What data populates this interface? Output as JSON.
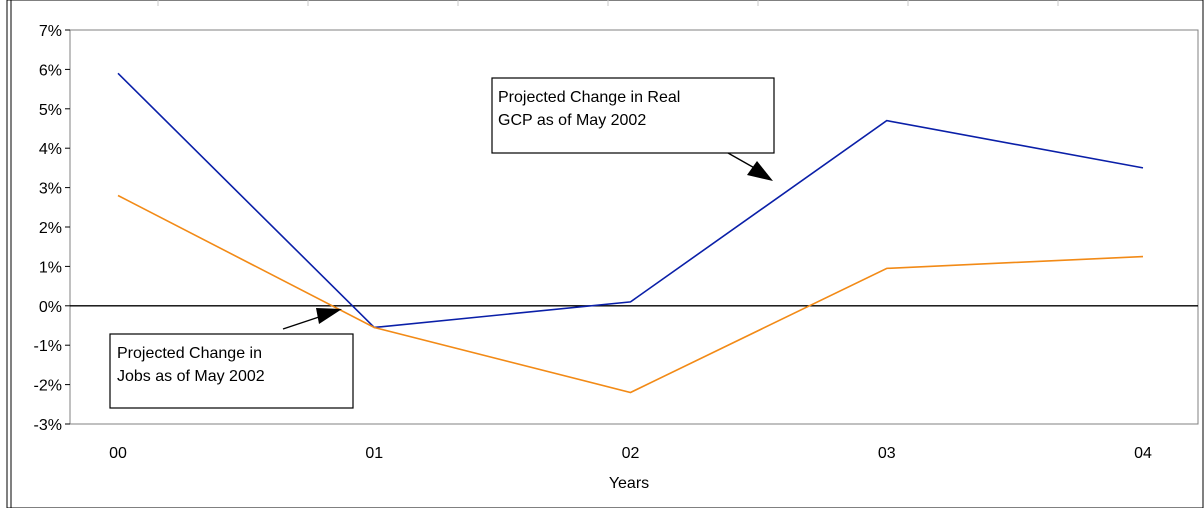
{
  "chart_data": {
    "type": "line",
    "title": "",
    "xlabel": "Years",
    "ylabel": "",
    "categories": [
      "00",
      "01",
      "02",
      "03",
      "04"
    ],
    "ylim": [
      -3,
      7
    ],
    "yticks": [
      7,
      6,
      5,
      4,
      3,
      2,
      1,
      0,
      -1,
      -2,
      -3
    ],
    "ytick_labels": [
      "7%",
      "6%",
      "5%",
      "4%",
      "3%",
      "2%",
      "1%",
      "0%",
      "-1%",
      "-2%",
      "-3%"
    ],
    "grid": false,
    "legend": "none",
    "series": [
      {
        "name": "Projected Change in Real GCP as of May 2002",
        "color": "#0a1fa8",
        "values": [
          5.9,
          -0.55,
          0.1,
          4.7,
          3.5
        ]
      },
      {
        "name": "Projected Change in Jobs as of May 2002",
        "color": "#f28a16",
        "values": [
          2.8,
          -0.55,
          -2.2,
          0.95,
          1.25
        ]
      }
    ],
    "annotations": [
      {
        "text_lines": [
          "Projected Change in Real",
          "GCP as of May 2002"
        ],
        "series": 0
      },
      {
        "text_lines": [
          "Projected Change in",
          "Jobs as of May 2002"
        ],
        "series": 1
      }
    ]
  }
}
